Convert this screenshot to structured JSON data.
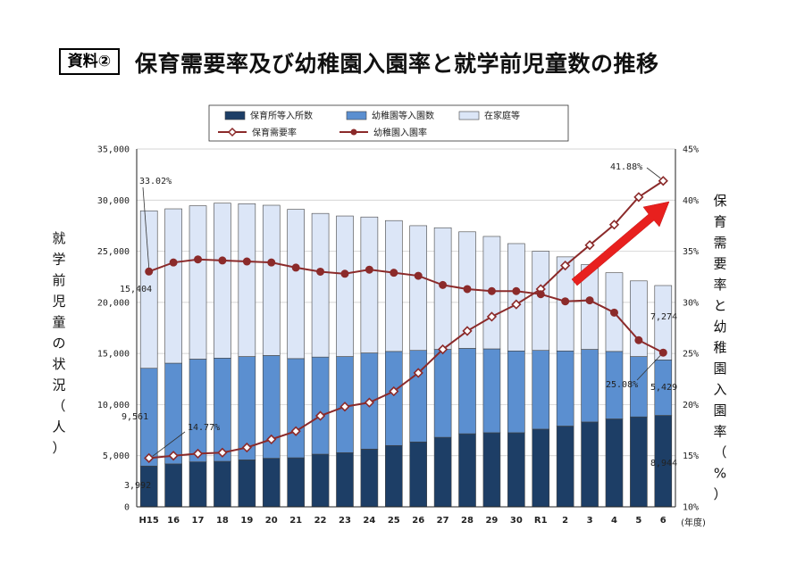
{
  "header": {
    "badge": "資料②",
    "title": "保育需要率及び幼稚園入園率と就学前児童数の推移"
  },
  "chart_data": {
    "type": "bar",
    "stacked": true,
    "categories": [
      "H15",
      "16",
      "17",
      "18",
      "19",
      "20",
      "21",
      "22",
      "23",
      "24",
      "25",
      "26",
      "27",
      "28",
      "29",
      "30",
      "R1",
      "2",
      "3",
      "4",
      "5",
      "6"
    ],
    "xlabel_unit": "(年度)",
    "ylabel_left": "就学前児童の状況（人）",
    "ylabel_right": "保育需要率と幼稚園入園率（%）",
    "ylim_left": [
      0,
      35000
    ],
    "ylim_right": [
      10,
      45
    ],
    "left_ticks": [
      "0",
      "5,000",
      "10,000",
      "15,000",
      "20,000",
      "25,000",
      "30,000",
      "35,000"
    ],
    "right_ticks": [
      "10%",
      "15%",
      "20%",
      "25%",
      "30%",
      "35%",
      "40%",
      "45%"
    ],
    "colors": {
      "nursery": "#1d3e66",
      "kinder": "#5b8fd0",
      "home": "#dce6f7",
      "line": "#8b2a2a"
    },
    "series": [
      {
        "name": "保育所等入所数",
        "kind": "bar",
        "values": [
          3992,
          4200,
          4400,
          4450,
          4600,
          4750,
          4800,
          5150,
          5300,
          5650,
          6000,
          6350,
          6800,
          7150,
          7250,
          7250,
          7600,
          7900,
          8300,
          8600,
          8800,
          8944
        ]
      },
      {
        "name": "幼稚園等入園数",
        "kind": "bar",
        "values": [
          9561,
          9850,
          10050,
          10100,
          10100,
          10050,
          9700,
          9500,
          9400,
          9400,
          9200,
          8950,
          8600,
          8350,
          8200,
          8000,
          7700,
          7350,
          7100,
          6600,
          5900,
          5429
        ]
      },
      {
        "name": "在家庭等",
        "kind": "bar",
        "values": [
          15404,
          15100,
          15000,
          15150,
          14950,
          14700,
          14600,
          14050,
          13750,
          13300,
          12800,
          12200,
          11900,
          11400,
          11000,
          10500,
          9700,
          9200,
          8300,
          7700,
          7400,
          7274
        ]
      },
      {
        "name": "保育需要率",
        "kind": "line",
        "marker": "diamond",
        "values": [
          14.77,
          15.0,
          15.2,
          15.3,
          15.8,
          16.6,
          17.4,
          18.9,
          19.8,
          20.2,
          21.3,
          23.1,
          25.4,
          27.2,
          28.6,
          29.8,
          31.3,
          33.6,
          35.6,
          37.6,
          40.3,
          41.88
        ]
      },
      {
        "name": "幼稚園入園率",
        "kind": "line",
        "marker": "circle",
        "values": [
          33.02,
          33.9,
          34.2,
          34.1,
          34.0,
          33.9,
          33.4,
          33.0,
          32.8,
          33.2,
          32.9,
          32.6,
          31.7,
          31.3,
          31.1,
          31.1,
          30.8,
          30.1,
          30.2,
          29.0,
          26.3,
          25.08
        ]
      }
    ],
    "annotations": [
      {
        "text": "33.02%",
        "series": "幼稚園入園率",
        "index": 0
      },
      {
        "text": "15,404",
        "series": "在家庭等",
        "index": 0
      },
      {
        "text": "9,561",
        "series": "幼稚園等入園数",
        "index": 0
      },
      {
        "text": "14.77%",
        "series": "保育需要率",
        "index": 0
      },
      {
        "text": "3,992",
        "series": "保育所等入所数",
        "index": 0
      },
      {
        "text": "41.88%",
        "series": "保育需要率",
        "index": 21
      },
      {
        "text": "7,274",
        "series": "在家庭等",
        "index": 21
      },
      {
        "text": "25.08%",
        "series": "幼稚園入園率",
        "index": 21
      },
      {
        "text": "5,429",
        "series": "幼稚園等入園数",
        "index": 21
      },
      {
        "text": "8,944",
        "series": "保育所等入所数",
        "index": 21
      }
    ],
    "legend_position": "top"
  }
}
